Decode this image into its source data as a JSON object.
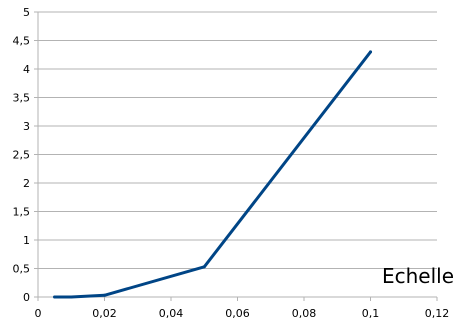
{
  "chart_data": {
    "type": "line",
    "title": "",
    "xlabel": "Echelle",
    "ylabel": "",
    "xlim": [
      0,
      0.12
    ],
    "ylim": [
      0,
      5
    ],
    "x_ticks": [
      "0",
      "0,02",
      "0,04",
      "0,06",
      "0,08",
      "0,1",
      "0,12"
    ],
    "y_ticks": [
      "0",
      "0,5",
      "1",
      "1,5",
      "2",
      "2,5",
      "3",
      "3,5",
      "4",
      "4,5",
      "5"
    ],
    "grid": "horizontal",
    "legend": "none",
    "series": [
      {
        "x": [
          0.005,
          0.01,
          0.02,
          0.05,
          0.1
        ],
        "y": [
          0,
          0,
          0.03,
          0.53,
          4.3
        ],
        "color": "#004586"
      }
    ]
  }
}
